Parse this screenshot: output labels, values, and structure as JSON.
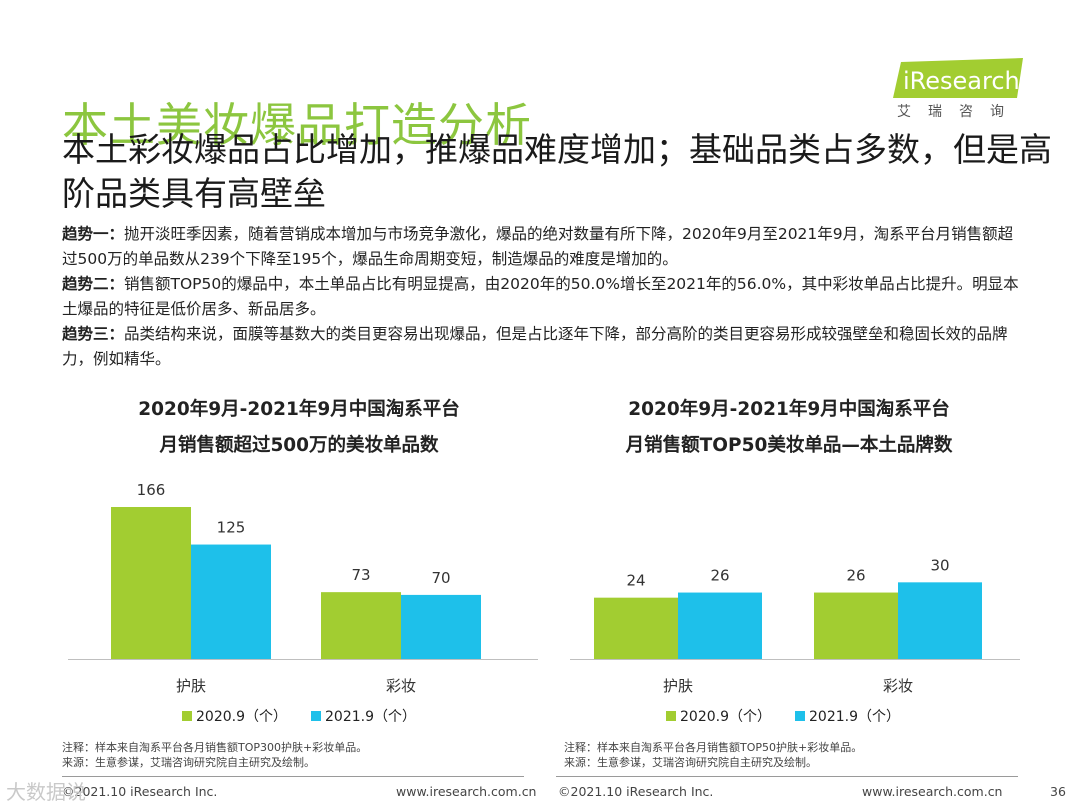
{
  "page": {
    "title": "本土美妆爆品打造分析",
    "subtitle": "本土彩妆爆品占比增加，推爆品难度增加；基础品类占多数，但是高阶品类具有高壁垒",
    "page_number": "36"
  },
  "logo": {
    "name": "iResearch",
    "sub": "艾瑞咨询"
  },
  "trends": [
    {
      "label": "趋势一：",
      "text": "抛开淡旺季因素，随着营销成本增加与市场竞争激化，爆品的绝对数量有所下降，2020年9月至2021年9月，淘系平台月销售额超过500万的单品数从239个下降至195个，爆品生命周期变短，制造爆品的难度是增加的。"
    },
    {
      "label": "趋势二：",
      "text": "销售额TOP50的爆品中，本土单品占比有明显提高，由2020年的50.0%增长至2021年的56.0%，其中彩妆单品占比提升。明显本土爆品的特征是低价居多、新品居多。"
    },
    {
      "label": "趋势三：",
      "text": "品类结构来说，面膜等基数大的类目更容易出现爆品，但是占比逐年下降，部分高阶的类目更容易形成较强壁垒和稳固长效的品牌力，例如精华。"
    }
  ],
  "colors": {
    "green": "#a2cd31",
    "blue": "#1ec0ea",
    "title_green": "#8cc63f"
  },
  "chart_data": [
    {
      "type": "bar",
      "title_line1": "2020年9月-2021年9月中国淘系平台",
      "title_line2": "月销售额超过500万的美妆单品数",
      "categories": [
        "护肤",
        "彩妆"
      ],
      "series": [
        {
          "name": "2020.9（个）",
          "values": [
            166,
            73
          ]
        },
        {
          "name": "2021.9（个）",
          "values": [
            125,
            70
          ]
        }
      ],
      "ylim": [
        0,
        166
      ],
      "note": "注释：样本来自淘系平台各月销售额TOP300护肤+彩妆单品。",
      "source": "来源：生意参谋，艾瑞咨询研究院自主研究及绘制。"
    },
    {
      "type": "bar",
      "title_line1": "2020年9月-2021年9月中国淘系平台",
      "title_line2": "月销售额TOP50美妆单品—本土品牌数",
      "categories": [
        "护肤",
        "彩妆"
      ],
      "series": [
        {
          "name": "2020.9（个）",
          "values": [
            24,
            26
          ]
        },
        {
          "name": "2021.9（个）",
          "values": [
            26,
            30
          ]
        }
      ],
      "ylim": [
        0,
        45
      ],
      "note": "注释：样本来自淘系平台各月销售额TOP50护肤+彩妆单品。",
      "source": "来源：生意参谋，艾瑞咨询研究院自主研究及绘制。"
    }
  ],
  "footer": {
    "left_copyright": "©2021.10 iResearch Inc.",
    "left_url": "www.iresearch.com.cn",
    "right_copyright": "©2021.10 iResearch Inc.",
    "right_url": "www.iresearch.com.cn"
  },
  "watermark": "大数据说"
}
